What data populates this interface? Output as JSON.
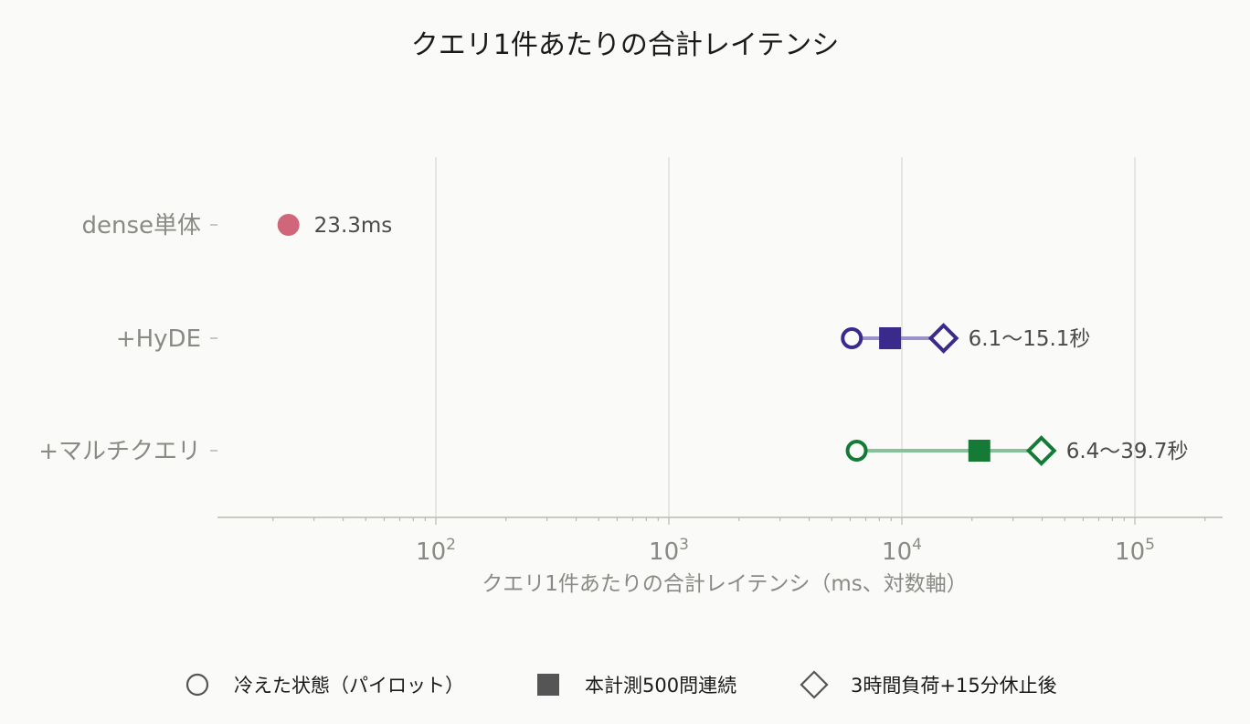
{
  "chart_data": {
    "type": "scatter",
    "title": "クエリ1件あたりの合計レイテンシ",
    "xlabel": "クエリ1件あたりの合計レイテンシ（ms、対数軸）",
    "ylabel": "",
    "x_scale": "log",
    "xlim": [
      10,
      230000
    ],
    "x_ticks": [
      {
        "value": 100,
        "base": "10",
        "exp": "2"
      },
      {
        "value": 1000,
        "base": "10",
        "exp": "3"
      },
      {
        "value": 10000,
        "base": "10",
        "exp": "4"
      },
      {
        "value": 100000,
        "base": "10",
        "exp": "5"
      }
    ],
    "grid": "vertical",
    "categories": [
      "dense単体",
      "+HyDE",
      "+マルチクエリ"
    ],
    "rows": [
      {
        "category": "dense単体",
        "color": "#cf6679",
        "points": [
          {
            "marker": "filled-circle",
            "value": 23.3
          }
        ],
        "label": "23.3ms"
      },
      {
        "category": "+HyDE",
        "color": "#3a2a8c",
        "range_color": "#9b92c9",
        "points": [
          {
            "marker": "circle",
            "value": 6100
          },
          {
            "marker": "square",
            "value": 8900
          },
          {
            "marker": "diamond",
            "value": 15100
          }
        ],
        "label": "6.1〜15.1秒"
      },
      {
        "category": "+マルチクエリ",
        "color": "#157a36",
        "range_color": "#86c19a",
        "points": [
          {
            "marker": "circle",
            "value": 6400
          },
          {
            "marker": "square",
            "value": 21500
          },
          {
            "marker": "diamond",
            "value": 39700
          }
        ],
        "label": "6.4〜39.7秒"
      }
    ],
    "legend_position": "bottom-center",
    "legend": [
      {
        "marker": "circle",
        "label": "冷えた状態（パイロット）"
      },
      {
        "marker": "square",
        "label": "本計測500問連続"
      },
      {
        "marker": "diamond",
        "label": "3時間負荷+15分休止後"
      }
    ]
  },
  "colors": {
    "background": "#fafaf9",
    "grid": "#dcdcd4",
    "axis": "#b9b9b0",
    "tick_text": "#8a8a85",
    "label_text": "#4a4a4a",
    "legend_marker": "#555555"
  }
}
